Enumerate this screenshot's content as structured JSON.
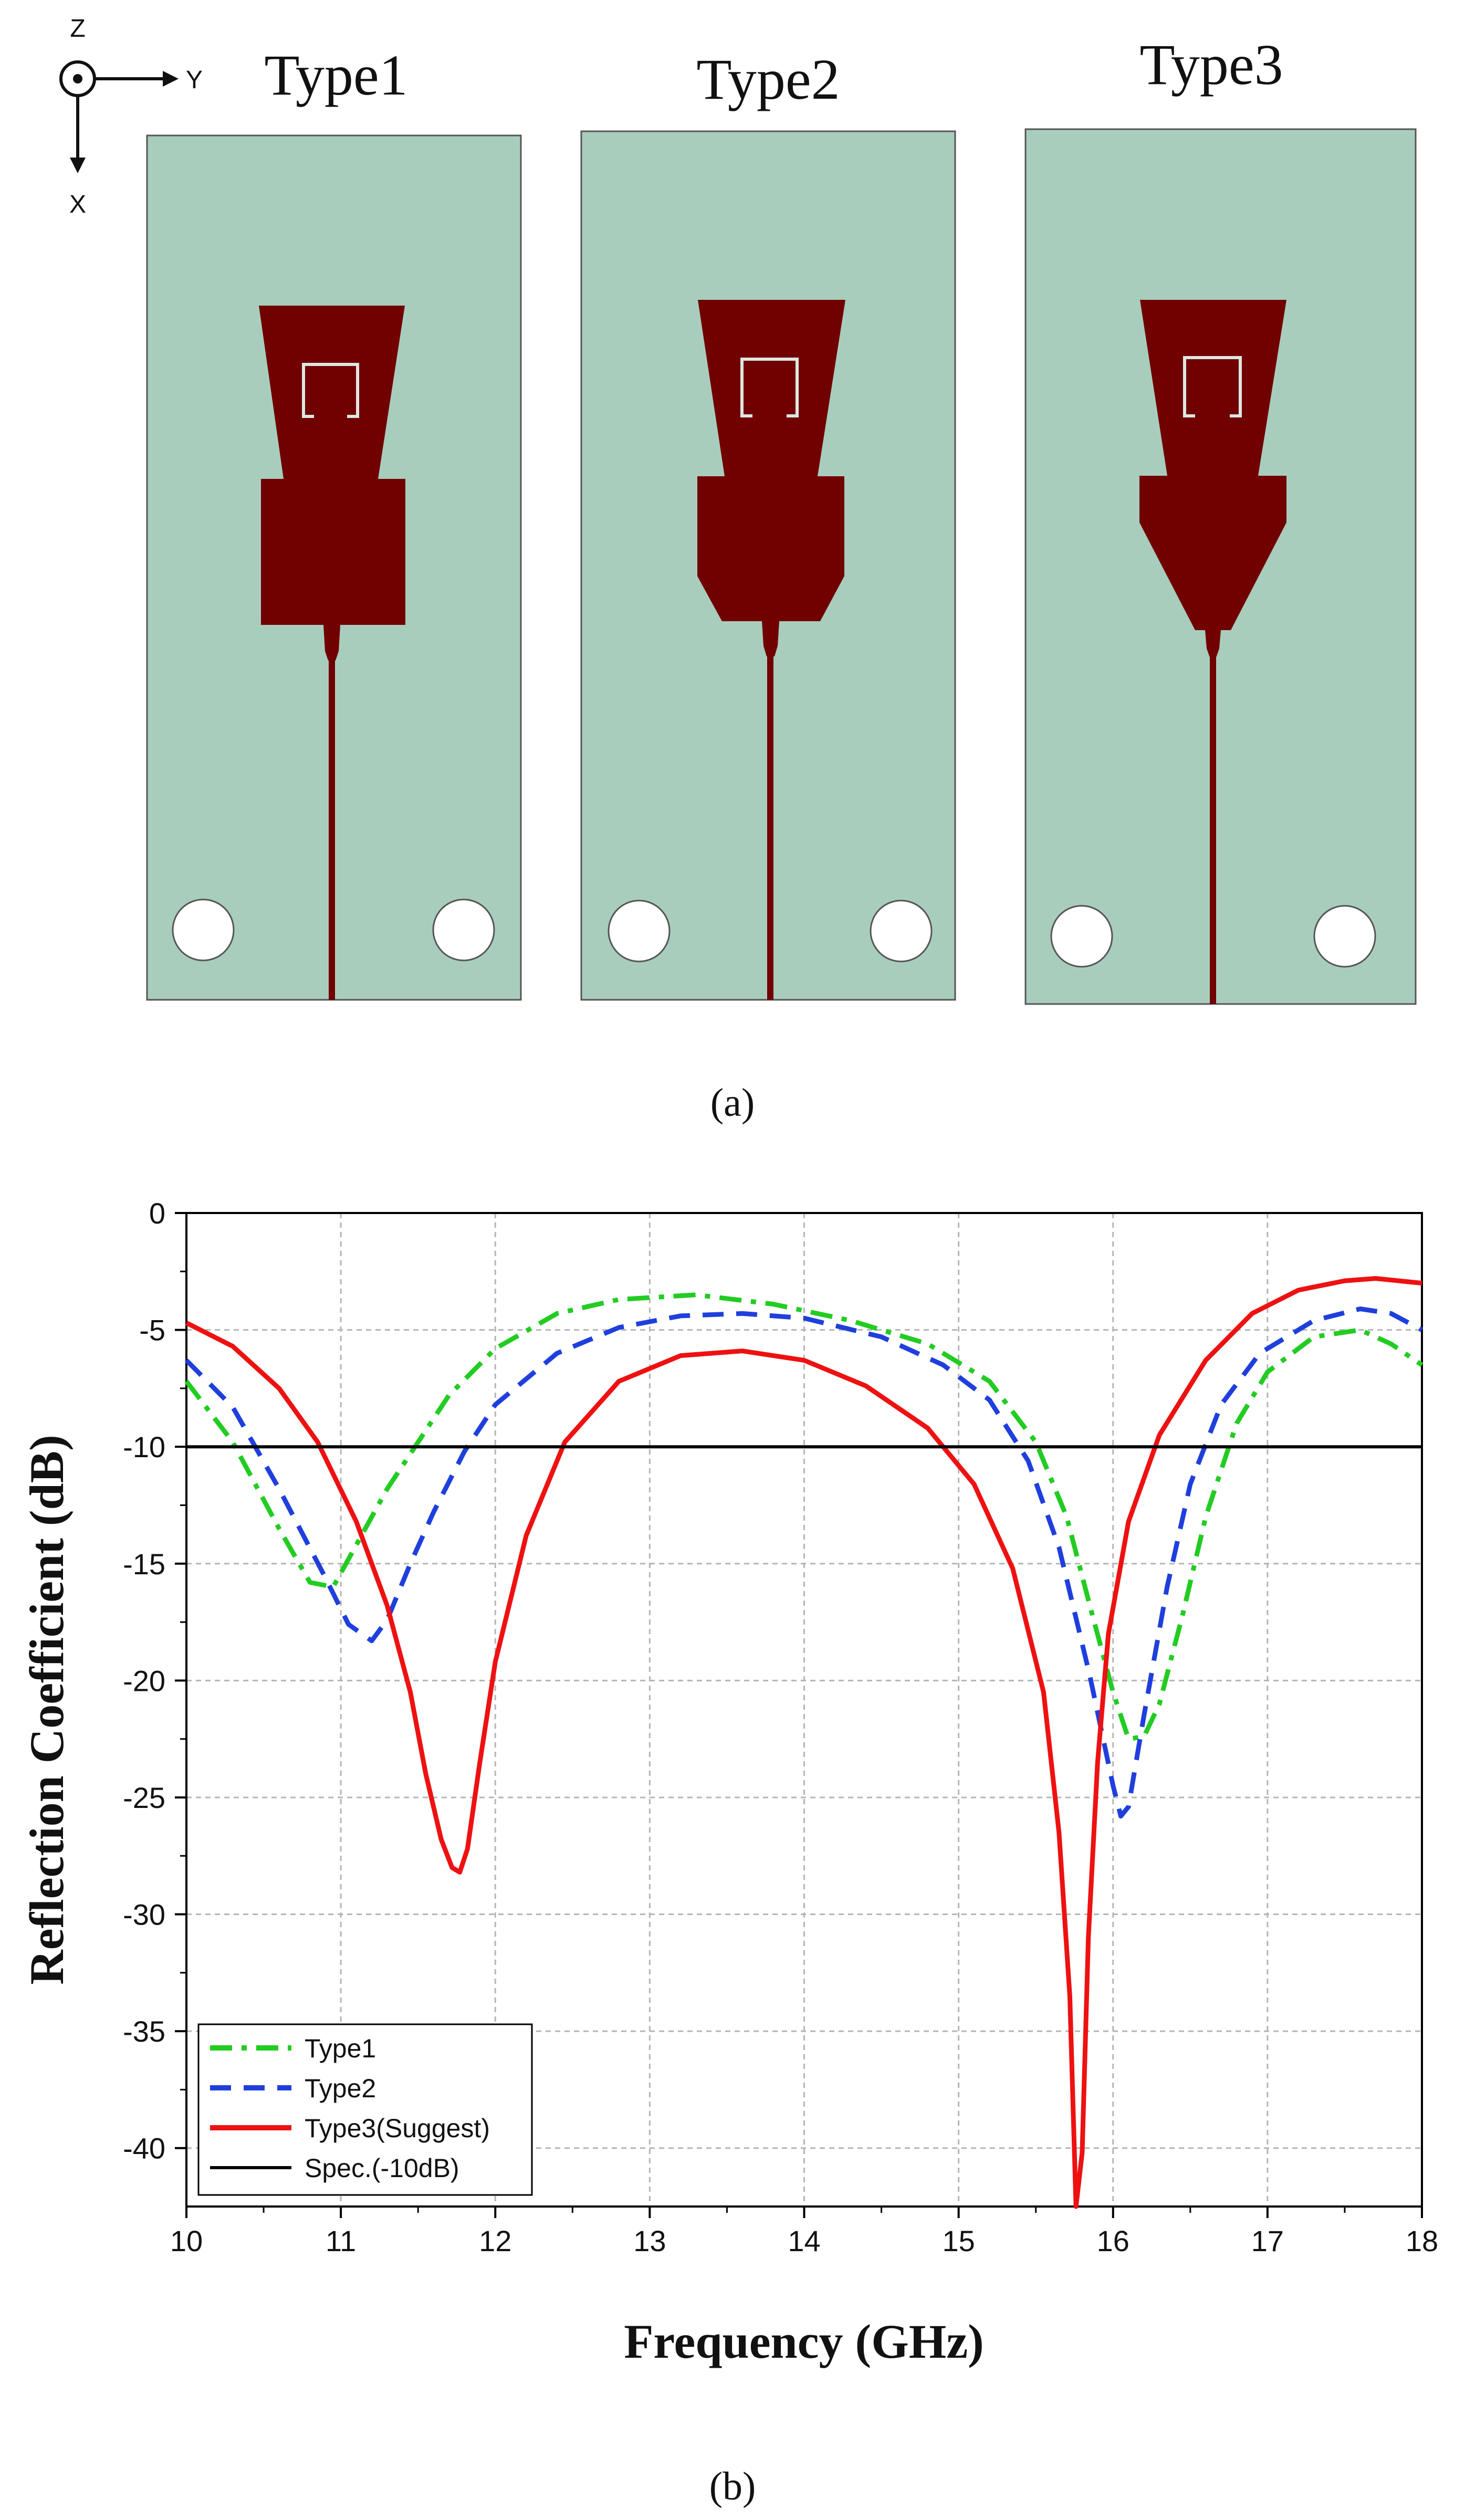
{
  "panel_a": {
    "caption": "(a)",
    "axes": {
      "z_label": "Z",
      "y_label": "Y",
      "x_label": "X"
    },
    "types": [
      "Type1",
      "Type2",
      "Type3"
    ],
    "colors": {
      "substrate": "#a8cdbd",
      "conductor": "#710000",
      "slot": "#dce8e0",
      "hole": "#ffffff"
    }
  },
  "panel_b": {
    "caption": "(b)"
  },
  "chart_data": {
    "type": "line",
    "title": "",
    "xlabel": "Frequency (GHz)",
    "ylabel": "Reflection Coefficient (dB)",
    "xlim": [
      10,
      18
    ],
    "ylim": [
      -42.5,
      0
    ],
    "xticks": [
      "10",
      "11",
      "12",
      "13",
      "14",
      "15",
      "16",
      "17",
      "18"
    ],
    "yticks": [
      "0",
      "-5",
      "-10",
      "-15",
      "-20",
      "-25",
      "-30",
      "-35",
      "-40"
    ],
    "grid": true,
    "legend_position": "bottom-left",
    "series": [
      {
        "name": "Type1",
        "color": "#22cc22",
        "style": "dash-dot",
        "x": [
          10.0,
          10.3,
          10.6,
          10.8,
          10.95,
          11.1,
          11.3,
          11.5,
          11.7,
          12.0,
          12.4,
          12.8,
          13.3,
          13.8,
          14.3,
          14.8,
          15.2,
          15.5,
          15.7,
          15.85,
          16.0,
          16.1,
          16.2,
          16.3,
          16.45,
          16.6,
          16.8,
          17.0,
          17.3,
          17.6,
          17.8,
          18.0
        ],
        "y": [
          -7.2,
          -9.8,
          -13.5,
          -15.8,
          -16.0,
          -14.2,
          -11.8,
          -9.8,
          -7.8,
          -5.8,
          -4.3,
          -3.7,
          -3.5,
          -3.9,
          -4.6,
          -5.6,
          -7.2,
          -9.8,
          -13.0,
          -16.8,
          -20.5,
          -22.5,
          -22.4,
          -21.0,
          -17.2,
          -13.0,
          -9.0,
          -6.8,
          -5.3,
          -5.0,
          -5.6,
          -6.5
        ]
      },
      {
        "name": "Type2",
        "color": "#1f3fdd",
        "style": "dash",
        "x": [
          10.0,
          10.3,
          10.6,
          10.9,
          11.05,
          11.2,
          11.3,
          11.45,
          11.6,
          11.8,
          12.0,
          12.4,
          12.8,
          13.2,
          13.6,
          14.0,
          14.5,
          14.9,
          15.2,
          15.45,
          15.65,
          15.85,
          16.0,
          16.05,
          16.1,
          16.2,
          16.35,
          16.5,
          16.7,
          16.95,
          17.3,
          17.6,
          17.8,
          18.0
        ],
        "y": [
          -6.3,
          -8.3,
          -11.8,
          -15.6,
          -17.6,
          -18.3,
          -17.4,
          -15.0,
          -12.8,
          -10.2,
          -8.2,
          -6.0,
          -4.9,
          -4.4,
          -4.3,
          -4.5,
          -5.3,
          -6.5,
          -8.0,
          -10.6,
          -14.3,
          -19.8,
          -24.5,
          -25.8,
          -25.4,
          -21.5,
          -16.0,
          -11.6,
          -8.2,
          -6.0,
          -4.6,
          -4.1,
          -4.3,
          -5.0
        ]
      },
      {
        "name": "Type3(Suggest)",
        "color": "#ee1111",
        "style": "solid",
        "x": [
          10.0,
          10.3,
          10.6,
          10.85,
          11.1,
          11.3,
          11.45,
          11.55,
          11.65,
          11.72,
          11.77,
          11.82,
          11.9,
          12.0,
          12.2,
          12.45,
          12.8,
          13.2,
          13.6,
          14.0,
          14.4,
          14.8,
          15.1,
          15.35,
          15.55,
          15.65,
          15.72,
          15.76,
          15.8,
          15.84,
          15.9,
          15.97,
          16.1,
          16.3,
          16.6,
          16.9,
          17.2,
          17.5,
          17.7,
          18.0
        ],
        "y": [
          -4.7,
          -5.7,
          -7.5,
          -9.8,
          -13.2,
          -16.8,
          -20.5,
          -24.0,
          -26.8,
          -28.0,
          -28.2,
          -27.2,
          -23.5,
          -19.2,
          -13.8,
          -9.8,
          -7.2,
          -6.1,
          -5.9,
          -6.3,
          -7.4,
          -9.2,
          -11.6,
          -15.2,
          -20.5,
          -26.5,
          -33.5,
          -42.5,
          -40.2,
          -31.0,
          -23.5,
          -18.0,
          -13.2,
          -9.5,
          -6.3,
          -4.3,
          -3.3,
          -2.9,
          -2.8,
          -3.0
        ]
      },
      {
        "name": "Spec.(-10dB)",
        "color": "#000000",
        "style": "solid",
        "x": [
          10,
          18
        ],
        "y": [
          -10,
          -10
        ]
      }
    ]
  }
}
